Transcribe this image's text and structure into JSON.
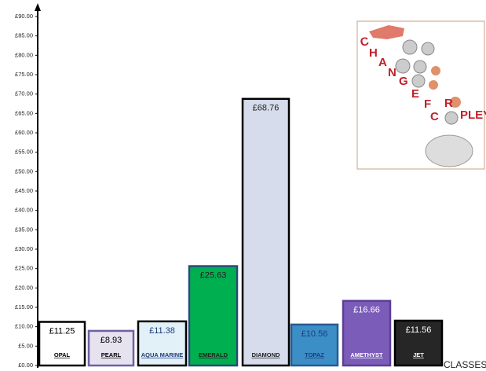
{
  "chart_data": {
    "type": "bar",
    "categories": [
      "OPAL",
      "PEARL",
      "AQUA MARINE",
      "EMERALD",
      "DIAMOND",
      "TOPAZ",
      "AMETHYST",
      "JET"
    ],
    "values": [
      11.25,
      8.93,
      11.38,
      25.63,
      68.76,
      10.56,
      16.66,
      11.56
    ],
    "value_labels": [
      "£11.25",
      "£8.93",
      "£11.38",
      "£25.63",
      "£68.76",
      "£10.56",
      "£16.66",
      "£11.56"
    ],
    "colors": [
      "#ffffff",
      "#e6e2f0",
      "#e2f1f8",
      "#00b050",
      "#d6dceb",
      "#3b8fc6",
      "#7b5cb8",
      "#262626"
    ],
    "border_colors": [
      "#000000",
      "#7060a0",
      "#000000",
      "#2a4a7a",
      "#000000",
      "#2a5a90",
      "#5a3f95",
      "#000000"
    ],
    "text_colors": [
      "#000000",
      "#000000",
      "#1f3a7a",
      "#1f1f1f",
      "#1f1f1f",
      "#1f3a7a",
      "#ffffff",
      "#ffffff"
    ],
    "ylim": [
      0,
      90
    ],
    "yticks": [
      {
        "value": 0,
        "label": "£0.00"
      },
      {
        "value": 5,
        "label": "£5.00"
      },
      {
        "value": 10,
        "label": "£10.00"
      },
      {
        "value": 15,
        "label": "£15.00"
      },
      {
        "value": 20,
        "label": "£20.00"
      },
      {
        "value": 25,
        "label": "£25.00"
      },
      {
        "value": 30,
        "label": "£30.00"
      },
      {
        "value": 35,
        "label": "£35.00"
      },
      {
        "value": 40,
        "label": "£40.00"
      },
      {
        "value": 45,
        "label": "£45.00"
      },
      {
        "value": 50,
        "label": "£50.00"
      },
      {
        "value": 55,
        "label": "£55.00"
      },
      {
        "value": 60,
        "label": "£60.00"
      },
      {
        "value": 65,
        "label": "£65.00"
      },
      {
        "value": 70,
        "label": "£70.00"
      },
      {
        "value": 75,
        "label": "£75.00"
      },
      {
        "value": 80,
        "label": "£80.00"
      },
      {
        "value": 85,
        "label": "£85.00"
      },
      {
        "value": 90,
        "label": "£90.00"
      }
    ],
    "x_axis_label": "CLASSES",
    "logo_letters": [
      "C",
      "H",
      "A",
      "N",
      "G",
      "E",
      "F",
      "R",
      "C",
      "PLEY"
    ]
  }
}
